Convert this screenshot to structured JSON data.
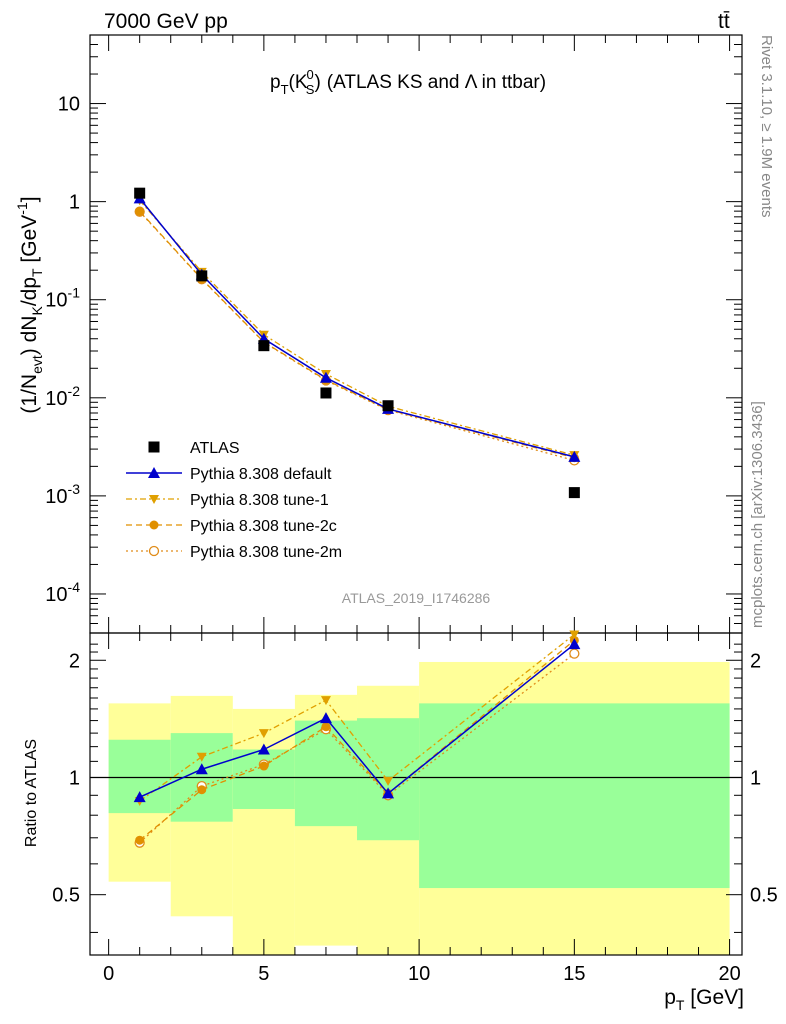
{
  "header": {
    "left": "7000 GeV pp",
    "right": "tt̄"
  },
  "plot_title": {
    "main": "p",
    "sub_t": "T",
    "paren_open": "(K",
    "sub_s": "S",
    "sup_0": "0",
    "paren_close": ")",
    "rest": "(ATLAS KS and Λ in ttbar)"
  },
  "y_axis_label": {
    "text1": "(1/N",
    "sub_evt": "evt",
    "text2": ") dN",
    "sub_k": "K",
    "text3": "/dp",
    "sub_t": "T",
    "text4": " [GeV",
    "sup": "-1",
    "text5": "]"
  },
  "side_labels": {
    "rivet": "Rivet 3.1.10, ≥ 1.9M events",
    "mcplots": "mcplots.cern.ch [arXiv:1306.3436]"
  },
  "analysis_id": "ATLAS_2019_I1746286",
  "ratio_label": "Ratio to ATLAS",
  "x_axis_label": {
    "text": "p",
    "sub": "T",
    "unit": " [GeV]"
  },
  "colors": {
    "data": "#000000",
    "default": "#0000cc",
    "tune1": "#e0a000",
    "tune2c": "#e09000",
    "tune2m": "#e08c1a",
    "band_inner": "#99ff99",
    "band_outer": "#ffff99"
  },
  "chart_data": {
    "type": "line",
    "x": [
      1,
      3,
      5,
      7,
      9,
      15
    ],
    "bin_edges": [
      0,
      2,
      4,
      6,
      8,
      10,
      20
    ],
    "main_panel": {
      "yscale": "log",
      "ylim": [
        4e-05,
        50
      ],
      "y_ticks": [
        {
          "value": 0.0001,
          "base": "10",
          "exp": "-4"
        },
        {
          "value": 0.001,
          "base": "10",
          "exp": "-3"
        },
        {
          "value": 0.01,
          "base": "10",
          "exp": "-2"
        },
        {
          "value": 0.1,
          "base": "10",
          "exp": "-1"
        },
        {
          "value": 1,
          "base": "1",
          "exp": ""
        },
        {
          "value": 10,
          "base": "10",
          "exp": ""
        }
      ],
      "series": [
        {
          "key": "data",
          "name": "ATLAS",
          "values": [
            1.22,
            0.175,
            0.034,
            0.0112,
            0.0083,
            0.00108
          ]
        },
        {
          "key": "default",
          "name": "Pythia 8.308 default",
          "values": [
            1.08,
            0.18,
            0.04,
            0.016,
            0.0077,
            0.0025
          ]
        },
        {
          "key": "tune1",
          "name": "Pythia 8.308 tune-1",
          "values": [
            1.03,
            0.192,
            0.044,
            0.0175,
            0.0082,
            0.0026
          ]
        },
        {
          "key": "tune2c",
          "name": "Pythia 8.308 tune-2c",
          "values": [
            0.8,
            0.163,
            0.037,
            0.0152,
            0.0076,
            0.00245
          ]
        },
        {
          "key": "tune2m",
          "name": "Pythia 8.308 tune-2m",
          "values": [
            0.79,
            0.162,
            0.0368,
            0.015,
            0.0075,
            0.0023
          ]
        }
      ]
    },
    "ratio_panel": {
      "yscale": "log",
      "ylim": [
        0.35,
        2.35
      ],
      "y_ticks": [
        0.5,
        1,
        2
      ],
      "y_tick_labels": [
        "0.5",
        "1",
        "2"
      ],
      "band_inner": [
        [
          0.81,
          1.25
        ],
        [
          0.77,
          1.3
        ],
        [
          0.83,
          1.18
        ],
        [
          0.75,
          1.4
        ],
        [
          0.69,
          1.42
        ],
        [
          0.52,
          1.55
        ]
      ],
      "band_outer": [
        [
          0.54,
          1.55
        ],
        [
          0.44,
          1.62
        ],
        [
          0.33,
          1.5
        ],
        [
          0.37,
          1.63
        ],
        [
          0.3,
          1.72
        ],
        [
          0.3,
          1.98
        ]
      ],
      "series": [
        {
          "key": "default",
          "values": [
            0.89,
            1.05,
            1.18,
            1.42,
            0.91,
            2.2
          ]
        },
        {
          "key": "tune1",
          "values": [
            0.87,
            1.13,
            1.3,
            1.58,
            0.98,
            2.33
          ]
        },
        {
          "key": "tune2c",
          "values": [
            0.69,
            0.93,
            1.07,
            1.35,
            0.91,
            2.25
          ]
        },
        {
          "key": "tune2m",
          "values": [
            0.68,
            0.95,
            1.08,
            1.33,
            0.9,
            2.08
          ]
        }
      ]
    },
    "x_axis": {
      "xlim": [
        -0.6,
        20.4
      ],
      "ticks": [
        0,
        5,
        10,
        15,
        20
      ],
      "tick_labels": [
        "0",
        "5",
        "10",
        "15",
        "20"
      ]
    }
  }
}
